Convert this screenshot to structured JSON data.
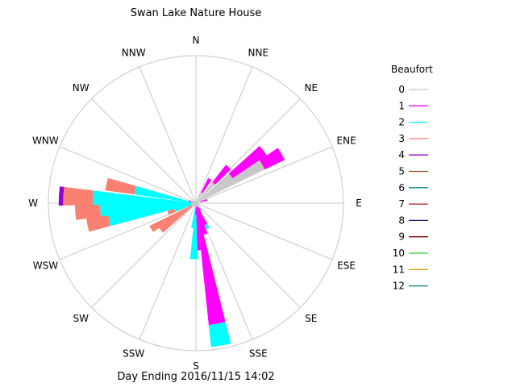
{
  "chart_data": {
    "type": "wind-rose",
    "title": "Swan Lake Nature House",
    "footer": "Day Ending 2016/11/15 14:02",
    "directions": [
      "N",
      "NNE",
      "NE",
      "ENE",
      "E",
      "ESE",
      "SE",
      "SSE",
      "S",
      "SSW",
      "SW",
      "WSW",
      "W",
      "WNW",
      "NW",
      "NNW"
    ],
    "legend_title": "Beaufort",
    "legend_position": "right",
    "legend": [
      {
        "label": "0",
        "color": "#c8c8c8"
      },
      {
        "label": "1",
        "color": "#ff00ff"
      },
      {
        "label": "2",
        "color": "#00ffff"
      },
      {
        "label": "3",
        "color": "#fa8072"
      },
      {
        "label": "4",
        "color": "#9400d3"
      },
      {
        "label": "5",
        "color": "#8b4513"
      },
      {
        "label": "6",
        "color": "#008b8b"
      },
      {
        "label": "7",
        "color": "#b22222"
      },
      {
        "label": "8",
        "color": "#191970"
      },
      {
        "label": "9",
        "color": "#8b0000"
      },
      {
        "label": "10",
        "color": "#32cd32"
      },
      {
        "label": "11",
        "color": "#daa520"
      },
      {
        "label": "12",
        "color": "#008080"
      }
    ],
    "wedges": [
      {
        "bearing": 30,
        "segments": [
          [
            0,
            0.08
          ],
          [
            1,
            0.19
          ]
        ]
      },
      {
        "bearing": 42,
        "segments": [
          [
            0,
            0.18
          ],
          [
            1,
            0.33
          ]
        ]
      },
      {
        "bearing": 52,
        "segments": [
          [
            0,
            0.3
          ],
          [
            1,
            0.58
          ]
        ]
      },
      {
        "bearing": 60,
        "segments": [
          [
            0,
            0.52
          ],
          [
            1,
            0.67
          ]
        ]
      },
      {
        "bearing": 74,
        "segments": [
          [
            0,
            0.03
          ],
          [
            1,
            0.08
          ]
        ]
      },
      {
        "bearing": 148,
        "segments": [
          [
            0,
            0.02
          ],
          [
            1,
            0.06
          ]
        ]
      },
      {
        "bearing": 155,
        "segments": [
          [
            0,
            0.03
          ],
          [
            1,
            0.16
          ],
          [
            2,
            0.19
          ]
        ]
      },
      {
        "bearing": 163,
        "segments": [
          [
            0,
            0.03
          ],
          [
            1,
            0.22
          ]
        ]
      },
      {
        "bearing": 170,
        "segments": [
          [
            0,
            0.03
          ],
          [
            1,
            0.83
          ],
          [
            2,
            0.98
          ]
        ]
      },
      {
        "bearing": 178,
        "segments": [
          [
            0,
            0.02
          ],
          [
            1,
            0.32
          ]
        ]
      },
      {
        "bearing": 182,
        "segments": [
          [
            0,
            0.02
          ],
          [
            1,
            0.08
          ],
          [
            2,
            0.38
          ]
        ]
      },
      {
        "bearing": 187,
        "segments": [
          [
            0,
            0.02
          ],
          [
            2,
            0.17
          ]
        ]
      },
      {
        "bearing": 232,
        "segments": [
          [
            0,
            0.03
          ],
          [
            3,
            0.3
          ]
        ]
      },
      {
        "bearing": 240,
        "segments": [
          [
            0,
            0.03
          ],
          [
            3,
            0.35
          ]
        ]
      },
      {
        "bearing": 251,
        "segments": [
          [
            0,
            0.03
          ],
          [
            2,
            0.15
          ],
          [
            3,
            0.2
          ]
        ]
      },
      {
        "bearing": 259,
        "segments": [
          [
            0,
            0.03
          ],
          [
            2,
            0.6
          ],
          [
            3,
            0.75
          ]
        ]
      },
      {
        "bearing": 266,
        "segments": [
          [
            0,
            0.03
          ],
          [
            2,
            0.65
          ],
          [
            3,
            0.82
          ]
        ]
      },
      {
        "bearing": 273,
        "segments": [
          [
            0,
            0.03
          ],
          [
            2,
            0.7
          ],
          [
            3,
            0.9
          ],
          [
            4,
            0.93
          ]
        ]
      },
      {
        "bearing": 282,
        "segments": [
          [
            0,
            0.03
          ],
          [
            2,
            0.42
          ],
          [
            3,
            0.62
          ]
        ]
      },
      {
        "bearing": 290,
        "segments": [
          [
            0,
            0.02
          ],
          [
            1,
            0.05
          ]
        ]
      }
    ]
  }
}
